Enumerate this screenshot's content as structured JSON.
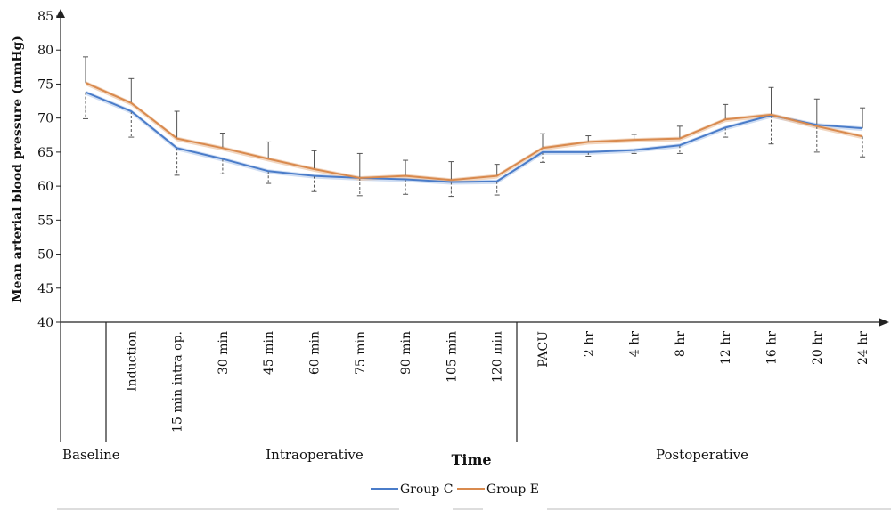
{
  "chart_data": {
    "type": "line",
    "title": "",
    "xlabel": "Time",
    "ylabel": "Mean arterial blood pressure (mmHg)",
    "ylim": [
      40,
      85
    ],
    "yticks": [
      40,
      45,
      50,
      55,
      60,
      65,
      70,
      75,
      80,
      85
    ],
    "categories": [
      "Baseline",
      "Induction",
      "15 min intra op.",
      "30 min",
      "45 min",
      "60 min",
      "75 min",
      "90 min",
      "105 min",
      "120 min",
      "PACU",
      "2 hr",
      "4 hr",
      "8 hr",
      "12 hr",
      "16 hr",
      "20 hr",
      "24 hr"
    ],
    "phases": [
      {
        "label": "Baseline"
      },
      {
        "label": "Intraoperative"
      },
      {
        "label": "Postoperative"
      }
    ],
    "series": [
      {
        "name": "Group C",
        "color": "#4a7cc9",
        "values": [
          73.8,
          71.0,
          65.6,
          64.0,
          62.2,
          61.5,
          61.2,
          61.0,
          60.6,
          60.7,
          65.0,
          65.0,
          65.3,
          66.0,
          68.6,
          70.4,
          69.0,
          68.5
        ]
      },
      {
        "name": "Group E",
        "color": "#d98a4e",
        "values": [
          75.2,
          72.2,
          67.0,
          65.6,
          64.0,
          62.5,
          61.2,
          61.5,
          60.9,
          61.5,
          65.6,
          66.5,
          66.8,
          67.0,
          69.8,
          70.5,
          68.8,
          67.3
        ]
      }
    ],
    "error_upper": [
      79.0,
      75.8,
      71.0,
      67.8,
      66.5,
      65.2,
      64.8,
      63.8,
      63.6,
      63.2,
      67.7,
      67.4,
      67.6,
      68.8,
      72.0,
      74.5,
      72.8,
      71.5
    ],
    "error_lower": [
      69.9,
      67.2,
      61.6,
      61.8,
      60.4,
      59.2,
      58.6,
      58.8,
      58.5,
      58.7,
      63.5,
      64.4,
      64.8,
      64.8,
      67.2,
      66.2,
      65.0,
      64.3
    ],
    "grid": false,
    "legend_position": "bottom-center"
  }
}
